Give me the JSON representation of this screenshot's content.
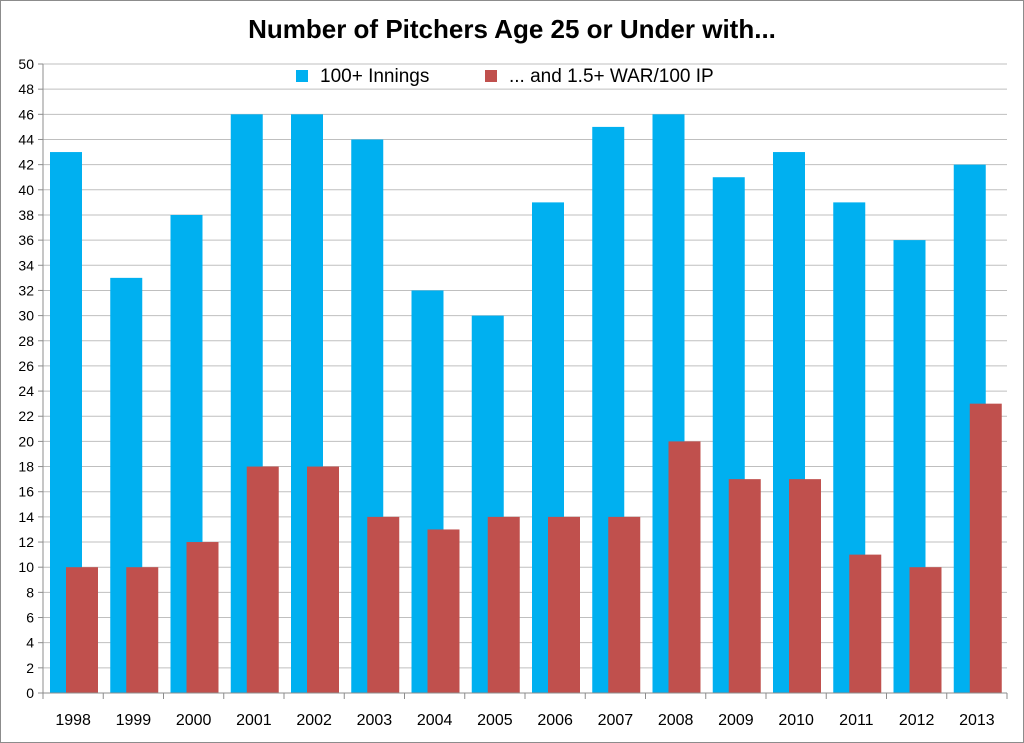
{
  "chart_data": {
    "type": "bar",
    "title": "Number of Pitchers Age 25 or Under with...",
    "xlabel": "",
    "ylabel": "",
    "categories": [
      "1998",
      "1999",
      "2000",
      "2001",
      "2002",
      "2003",
      "2004",
      "2005",
      "2006",
      "2007",
      "2008",
      "2009",
      "2010",
      "2011",
      "2012",
      "2013"
    ],
    "series": [
      {
        "name": "100+ Innings",
        "color": "#00b0f0",
        "values": [
          43,
          33,
          38,
          46,
          46,
          44,
          32,
          30,
          39,
          45,
          46,
          41,
          43,
          39,
          36,
          42
        ]
      },
      {
        "name": "... and 1.5+ WAR/100 IP",
        "color": "#c0504d",
        "values": [
          10,
          10,
          12,
          18,
          18,
          14,
          13,
          14,
          14,
          14,
          20,
          17,
          17,
          11,
          10,
          23
        ]
      }
    ],
    "ylim": [
      0,
      50
    ],
    "ytick_step": 2,
    "grid": true,
    "legend_position": "top"
  }
}
